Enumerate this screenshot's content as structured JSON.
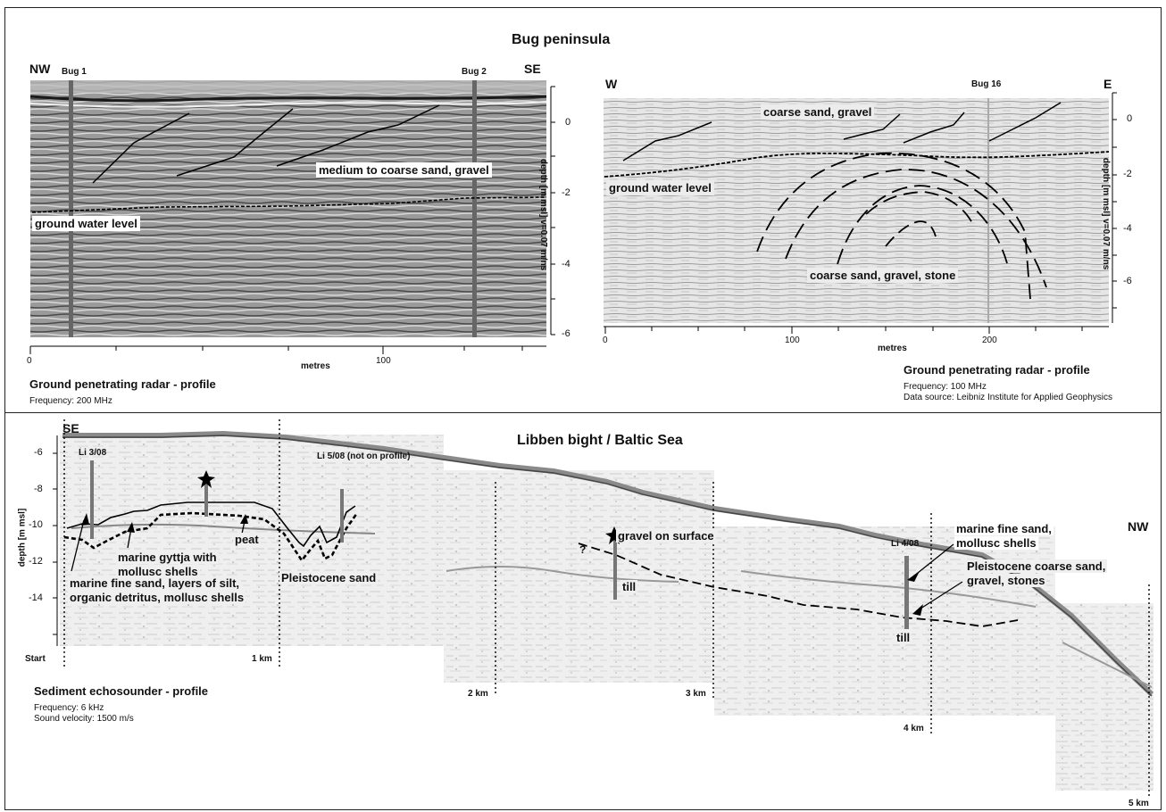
{
  "top": {
    "title": "Bug peninsula",
    "left": {
      "dir_left": "NW",
      "dir_right": "SE",
      "markers": [
        "Bug 1",
        "Bug 2"
      ],
      "depth_ticks": [
        "0",
        "-2",
        "-4",
        "-6"
      ],
      "depth_axis_label": "depth [m msl] v=0.07 m/ns",
      "x_ticks": [
        "0",
        "100"
      ],
      "x_label": "metres",
      "label_sediment": "medium to coarse sand, gravel",
      "label_water": "ground water level",
      "caption_title": "Ground penetrating radar - profile",
      "caption_frequency": "Frequency: 200 MHz"
    },
    "right": {
      "dir_left": "W",
      "dir_right": "E",
      "marker": "Bug 16",
      "depth_ticks": [
        "0",
        "-2",
        "-4",
        "-6"
      ],
      "depth_axis_label": "depth [m msl] v=0.07 m/ns",
      "x_ticks": [
        "0",
        "100",
        "200"
      ],
      "x_label": "metres",
      "label_top": "coarse sand, gravel",
      "label_water": "ground water level",
      "label_bottom": "coarse sand, gravel, stone",
      "caption_title": "Ground penetrating radar - profile",
      "caption_frequency": "Frequency: 100 MHz",
      "caption_source": "Data source: Leibniz Institute for Applied Geophysics"
    }
  },
  "bottom": {
    "title": "Libben bight / Baltic Sea",
    "dir_left": "SE",
    "dir_right": "NW",
    "depth_axis_label": "depth [m msl]",
    "depth_ticks": [
      "-6",
      "-8",
      "-10",
      "-12",
      "-14"
    ],
    "distance_labels": [
      "Start",
      "1 km",
      "2 km",
      "3 km",
      "4 km",
      "5 km"
    ],
    "cores": [
      "Li 3/08",
      "Li 5/08 (not on profile)",
      "Li 4/08"
    ],
    "labels": {
      "peat": "peat",
      "gyttja": [
        "marine gyttja with",
        "mollusc shells"
      ],
      "fine_sand_silt": [
        "marine fine sand, layers of silt,",
        "organic detritus, mollusc shells"
      ],
      "pleistocene_sand": "Pleistocene sand",
      "gravel_surface": "gravel on surface",
      "question": "?",
      "till_1": "till",
      "till_2": "till",
      "marine_fine_sand": [
        "marine fine sand,",
        "mollusc shells"
      ],
      "pleistocene_coarse": [
        "Pleistocene coarse sand,",
        "gravel, stones"
      ]
    },
    "caption_title": "Sediment echosounder - profile",
    "caption_frequency": "Frequency: 6 kHz",
    "caption_velocity": "Sound velocity: 1500 m/s"
  }
}
